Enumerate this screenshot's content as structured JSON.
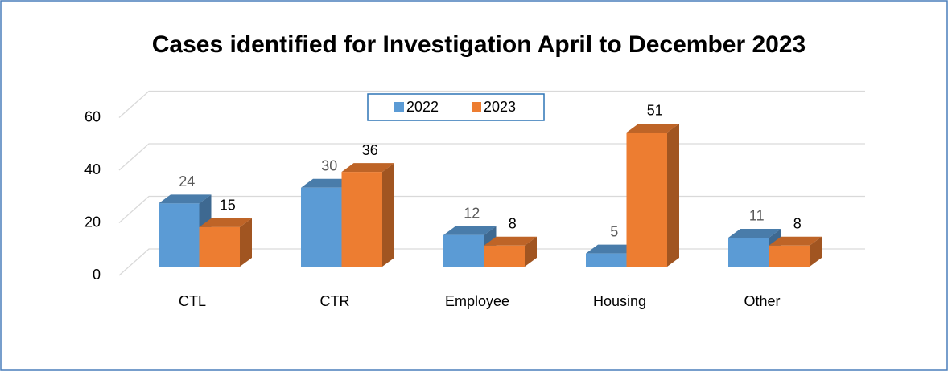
{
  "chart_data": {
    "type": "bar3d",
    "title": "Cases identified for Investigation April to December 2023",
    "categories": [
      "CTL",
      "CTR",
      "Employee",
      "Housing",
      "Other"
    ],
    "series": [
      {
        "name": "2022",
        "color": "#5b9bd5",
        "values": [
          24,
          30,
          12,
          5,
          11
        ]
      },
      {
        "name": "2023",
        "color": "#ed7d31",
        "values": [
          15,
          36,
          8,
          51,
          8
        ]
      }
    ],
    "ylim": [
      0,
      60
    ],
    "yticks": [
      0,
      20,
      40,
      60
    ],
    "grid": true,
    "legend": "top"
  }
}
